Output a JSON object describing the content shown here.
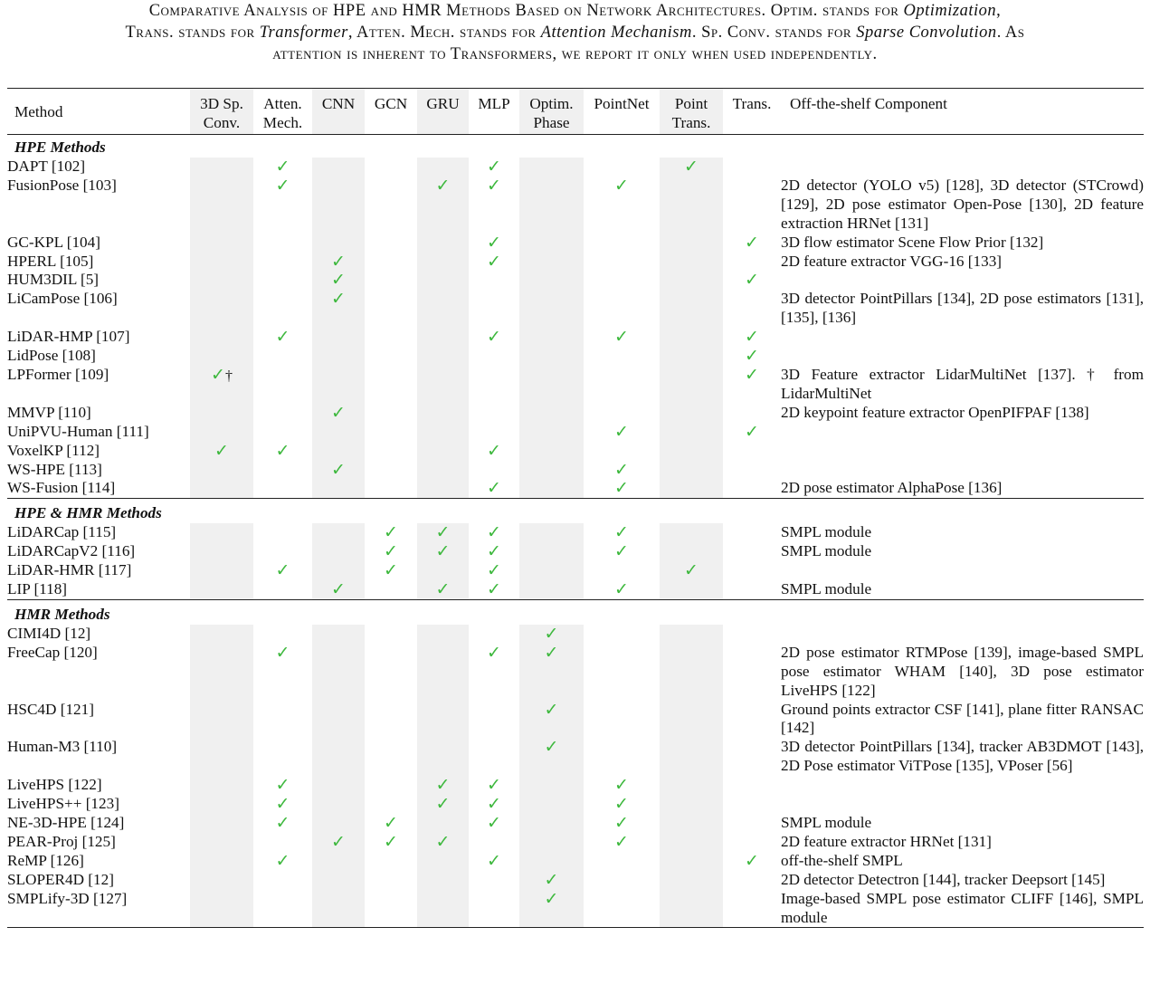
{
  "caption": {
    "line1": {
      "pre": "Comparative Analysis of HPE and HMR Methods Based on Network Architectures. Optim. stands for ",
      "em": "Optimization",
      "post": ","
    },
    "line2": {
      "a": "Trans. stands for ",
      "em1": "Transformer",
      "b": ", Atten. Mech. stands for ",
      "em2": "Attention Mechanism",
      "c": ". Sp. Conv. stands for ",
      "em3": "Sparse Convolution",
      "d": ". As"
    },
    "line3": "attention is inherent to Transformers, we report it only when used independently."
  },
  "columns": [
    "3D Sp. Conv.",
    "Atten. Mech.",
    "CNN",
    "GCN",
    "GRU",
    "MLP",
    "Optim. Phase",
    "PointNet",
    "Point Trans.",
    "Trans."
  ],
  "header": {
    "method": "Method",
    "c1a": "3D Sp.",
    "c1b": "Conv.",
    "c2a": "Atten.",
    "c2b": "Mech.",
    "c3": "CNN",
    "c4": "GCN",
    "c5": "GRU",
    "c6": "MLP",
    "c7a": "Optim.",
    "c7b": "Phase",
    "c8": "PointNet",
    "c9a": "Point",
    "c9b": "Trans.",
    "c10": "Trans.",
    "component": "Off-the-shelf Component"
  },
  "check_symbol": "✓",
  "check_color": "#3db83d",
  "dagger": "†",
  "sections": [
    {
      "title": "HPE Methods",
      "rows": [
        {
          "method": "DAPT  [102]",
          "checks": [
            0,
            1,
            0,
            0,
            0,
            1,
            0,
            0,
            1,
            0
          ],
          "component": ""
        },
        {
          "method": "FusionPose [103]",
          "checks": [
            0,
            1,
            0,
            0,
            1,
            1,
            0,
            1,
            0,
            0
          ],
          "component": "2D detector (YOLO v5) [128], 3D detector (STCrowd) [129], 2D pose estimator Open-Pose [130], 2D feature extraction HRNet [131]"
        },
        {
          "method": "GC-KPL [104]",
          "checks": [
            0,
            0,
            0,
            0,
            0,
            1,
            0,
            0,
            0,
            1
          ],
          "component": "3D flow estimator Scene Flow Prior [132]"
        },
        {
          "method": "HPERL [105]",
          "checks": [
            0,
            0,
            1,
            0,
            0,
            1,
            0,
            0,
            0,
            0
          ],
          "component": "2D feature extractor VGG-16 [133]"
        },
        {
          "method": "HUM3DIL [5]",
          "checks": [
            0,
            0,
            1,
            0,
            0,
            0,
            0,
            0,
            0,
            1
          ],
          "component": ""
        },
        {
          "method": "LiCamPose [106]",
          "checks": [
            0,
            0,
            1,
            0,
            0,
            0,
            0,
            0,
            0,
            0
          ],
          "component": "3D detector PointPillars [134], 2D pose estimators [131], [135], [136]"
        },
        {
          "method": "LiDAR-HMP  [107]",
          "checks": [
            0,
            1,
            0,
            0,
            0,
            1,
            0,
            1,
            0,
            1
          ],
          "component": ""
        },
        {
          "method": "LidPose [108]",
          "checks": [
            0,
            0,
            0,
            0,
            0,
            0,
            0,
            0,
            0,
            1
          ],
          "component": ""
        },
        {
          "method": "LPFormer [109]",
          "checks": [
            2,
            0,
            0,
            0,
            0,
            0,
            0,
            0,
            0,
            1
          ],
          "component": "3D Feature extractor LidarMultiNet [137]. † from LidarMultiNet"
        },
        {
          "method": "MMVP [110]",
          "checks": [
            0,
            0,
            1,
            0,
            0,
            0,
            0,
            0,
            0,
            0
          ],
          "component": "2D keypoint feature extractor OpenPIFPAF [138]"
        },
        {
          "method": "UniPVU-Human [111]",
          "checks": [
            0,
            0,
            0,
            0,
            0,
            0,
            0,
            1,
            0,
            1
          ],
          "component": ""
        },
        {
          "method": "VoxelKP [112]",
          "checks": [
            1,
            1,
            0,
            0,
            0,
            1,
            0,
            0,
            0,
            0
          ],
          "component": ""
        },
        {
          "method": "WS-HPE [113]",
          "checks": [
            0,
            0,
            1,
            0,
            0,
            0,
            0,
            1,
            0,
            0
          ],
          "component": ""
        },
        {
          "method": "WS-Fusion [114]",
          "checks": [
            0,
            0,
            0,
            0,
            0,
            1,
            0,
            1,
            0,
            0
          ],
          "component": "2D pose estimator AlphaPose [136]"
        }
      ]
    },
    {
      "title": "HPE & HMR Methods",
      "rows": [
        {
          "method": "LiDARCap [115]",
          "checks": [
            0,
            0,
            0,
            1,
            1,
            1,
            0,
            1,
            0,
            0
          ],
          "component": "SMPL module"
        },
        {
          "method": "LiDARCapV2 [116]",
          "checks": [
            0,
            0,
            0,
            1,
            1,
            1,
            0,
            1,
            0,
            0
          ],
          "component": "SMPL module"
        },
        {
          "method": "LiDAR-HMR [117]",
          "checks": [
            0,
            1,
            0,
            1,
            0,
            1,
            0,
            0,
            1,
            0
          ],
          "component": ""
        },
        {
          "method": "LIP [118]",
          "checks": [
            0,
            0,
            1,
            0,
            1,
            1,
            0,
            1,
            0,
            0
          ],
          "component": "SMPL module"
        }
      ]
    },
    {
      "title": "HMR Methods",
      "rows": [
        {
          "method": "CIMI4D [12]",
          "checks": [
            0,
            0,
            0,
            0,
            0,
            0,
            1,
            0,
            0,
            0
          ],
          "component": ""
        },
        {
          "method": "FreeCap [120]",
          "checks": [
            0,
            1,
            0,
            0,
            0,
            1,
            1,
            0,
            0,
            0
          ],
          "component": "2D pose estimator RTMPose [139], image-based SMPL pose estimator WHAM [140], 3D pose estimator LiveHPS [122]"
        },
        {
          "method": "HSC4D [121]",
          "checks": [
            0,
            0,
            0,
            0,
            0,
            0,
            1,
            0,
            0,
            0
          ],
          "component": "Ground points extractor CSF [141], plane fitter RANSAC [142]"
        },
        {
          "method": "Human-M3 [110]",
          "checks": [
            0,
            0,
            0,
            0,
            0,
            0,
            1,
            0,
            0,
            0
          ],
          "component": "3D detector PointPillars [134], tracker AB3DMOT [143], 2D Pose estimator ViTPose [135], VPoser [56]"
        },
        {
          "method": "LiveHPS [122]",
          "checks": [
            0,
            1,
            0,
            0,
            1,
            1,
            0,
            1,
            0,
            0
          ],
          "component": ""
        },
        {
          "method": "LiveHPS++ [123]",
          "checks": [
            0,
            1,
            0,
            0,
            1,
            1,
            0,
            1,
            0,
            0
          ],
          "component": ""
        },
        {
          "method": "NE-3D-HPE [124]",
          "checks": [
            0,
            1,
            0,
            1,
            0,
            1,
            0,
            1,
            0,
            0
          ],
          "component": "SMPL module"
        },
        {
          "method": "PEAR-Proj [125]",
          "checks": [
            0,
            0,
            1,
            1,
            1,
            0,
            0,
            1,
            0,
            0
          ],
          "component": "2D feature extractor HRNet [131]"
        },
        {
          "method": "ReMP [126]",
          "checks": [
            0,
            1,
            0,
            0,
            0,
            1,
            0,
            0,
            0,
            1
          ],
          "component": "off-the-shelf SMPL"
        },
        {
          "method": "SLOPER4D [12]",
          "checks": [
            0,
            0,
            0,
            0,
            0,
            0,
            1,
            0,
            0,
            0
          ],
          "component": "2D detector Detectron [144], tracker Deepsort [145]"
        },
        {
          "method": "SMPLify-3D [127]",
          "checks": [
            0,
            0,
            0,
            0,
            0,
            0,
            1,
            0,
            0,
            0
          ],
          "component": "Image-based SMPL pose estimator CLIFF [146], SMPL module"
        }
      ]
    }
  ]
}
